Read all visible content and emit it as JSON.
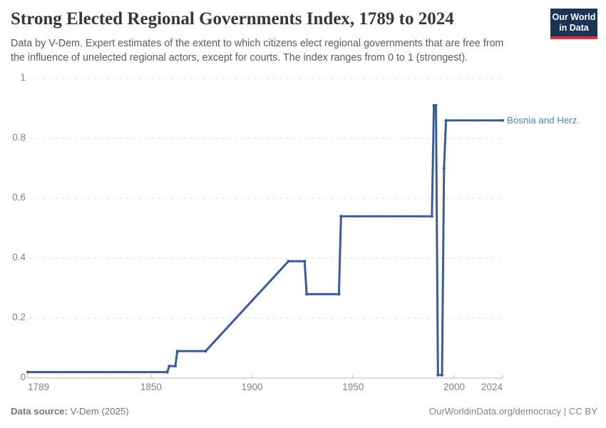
{
  "header": {
    "title": "Strong Elected Regional Governments Index, 1789 to 2024",
    "subtitle": [
      "Data by V-Dem. Expert estimates of the extent to which citizens elect regional governments that are free from",
      "the influence of unelected regional actors, except for courts. The index ranges from 0 to 1 (strongest)."
    ],
    "logo": {
      "line1": "Our World",
      "line2": "in Data",
      "bg_color": "#1d3356",
      "stripe_color": "#cf3a41"
    }
  },
  "chart_data": {
    "type": "line",
    "title": "Strong Elected Regional Governments Index, 1789 to 2024",
    "xlabel": "",
    "ylabel": "",
    "xlim": [
      1789,
      2024
    ],
    "ylim": [
      0,
      1
    ],
    "x_ticks": [
      1789,
      1850,
      1900,
      1950,
      2000,
      2024
    ],
    "y_ticks": [
      0,
      0.2,
      0.4,
      0.6,
      0.8,
      1
    ],
    "grid": "horizontal-dashed",
    "legend_position": "end-of-line",
    "series": [
      {
        "name": "Bosnia and Herz.",
        "color": "#49679e",
        "color_dark": "#3a5a94",
        "label_color": "#577ab5",
        "points": [
          [
            1789,
            0.02
          ],
          [
            1858,
            0.02
          ],
          [
            1859,
            0.04
          ],
          [
            1862,
            0.04
          ],
          [
            1863,
            0.09
          ],
          [
            1877,
            0.09
          ],
          [
            1918,
            0.39
          ],
          [
            1926,
            0.39
          ],
          [
            1927,
            0.28
          ],
          [
            1943,
            0.28
          ],
          [
            1944,
            0.54
          ],
          [
            1989,
            0.54
          ],
          [
            1990,
            0.91
          ],
          [
            1991,
            0.91
          ],
          [
            1992,
            0.01
          ],
          [
            1994,
            0.01
          ],
          [
            1995,
            0.7
          ],
          [
            1996,
            0.86
          ],
          [
            2024,
            0.86
          ]
        ]
      }
    ]
  },
  "footer": {
    "source_label": "Data source:",
    "source_value": "V-Dem (2025)",
    "credit": "OurWorldinData.org/democracy | CC BY"
  }
}
